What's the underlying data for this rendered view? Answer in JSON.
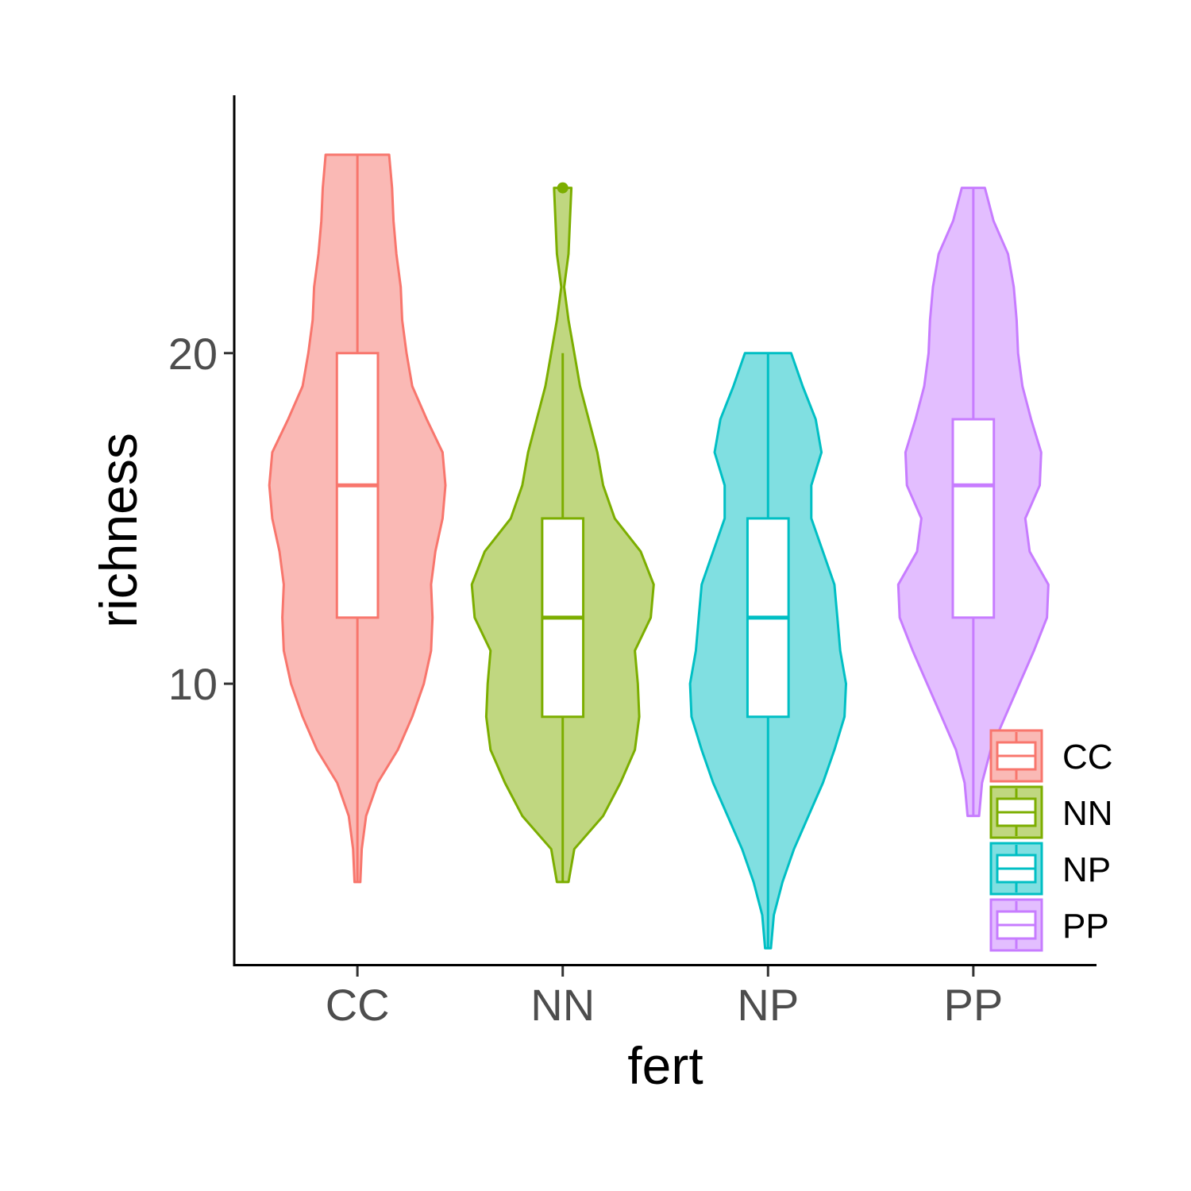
{
  "chart_data": {
    "type": "violin",
    "xlabel": "fert",
    "ylabel": "richness",
    "categories": [
      "CC",
      "NN",
      "NP",
      "PP"
    ],
    "ylim": [
      1.5,
      27.8
    ],
    "yticks": [
      10,
      20
    ],
    "grid": false,
    "legend_position": "bottom-right",
    "series": [
      {
        "name": "CC",
        "color": "#F8766D",
        "fill": "#FAB9B5",
        "box": {
          "min": 4,
          "q1": 12,
          "median": 16,
          "q3": 20,
          "max": 26
        },
        "density": [
          [
            4,
            0.01
          ],
          [
            5,
            0.015
          ],
          [
            6,
            0.03
          ],
          [
            7,
            0.07
          ],
          [
            8,
            0.14
          ],
          [
            9,
            0.19
          ],
          [
            10,
            0.23
          ],
          [
            11,
            0.255
          ],
          [
            12,
            0.26
          ],
          [
            13,
            0.255
          ],
          [
            14,
            0.27
          ],
          [
            15,
            0.295
          ],
          [
            16,
            0.305
          ],
          [
            17,
            0.295
          ],
          [
            18,
            0.24
          ],
          [
            19,
            0.19
          ],
          [
            20,
            0.17
          ],
          [
            21,
            0.155
          ],
          [
            22,
            0.15
          ],
          [
            23,
            0.135
          ],
          [
            24,
            0.125
          ],
          [
            25,
            0.12
          ],
          [
            26,
            0.11
          ]
        ],
        "outliers": []
      },
      {
        "name": "NN",
        "color": "#7CAE00",
        "fill": "#C0D780",
        "box": {
          "min": 4,
          "q1": 9,
          "median": 12,
          "q3": 15,
          "max": 20
        },
        "density": [
          [
            4,
            0.02
          ],
          [
            5,
            0.04
          ],
          [
            6,
            0.14
          ],
          [
            7,
            0.2
          ],
          [
            8,
            0.25
          ],
          [
            9,
            0.265
          ],
          [
            10,
            0.26
          ],
          [
            11,
            0.25
          ],
          [
            12,
            0.305
          ],
          [
            13,
            0.315
          ],
          [
            14,
            0.27
          ],
          [
            15,
            0.18
          ],
          [
            16,
            0.14
          ],
          [
            17,
            0.12
          ],
          [
            18,
            0.09
          ],
          [
            19,
            0.06
          ],
          [
            20,
            0.04
          ],
          [
            21,
            0.02
          ],
          [
            22,
            0.005
          ],
          [
            23,
            0.02
          ],
          [
            24,
            0.025
          ],
          [
            25,
            0.03
          ]
        ],
        "outliers": [
          25
        ]
      },
      {
        "name": "NP",
        "color": "#00BFC4",
        "fill": "#80DFE1",
        "box": {
          "min": 2,
          "q1": 9,
          "median": 12,
          "q3": 15,
          "max": 20
        },
        "density": [
          [
            2,
            0.01
          ],
          [
            3,
            0.02
          ],
          [
            4,
            0.05
          ],
          [
            5,
            0.09
          ],
          [
            6,
            0.14
          ],
          [
            7,
            0.19
          ],
          [
            8,
            0.23
          ],
          [
            9,
            0.265
          ],
          [
            10,
            0.27
          ],
          [
            11,
            0.25
          ],
          [
            12,
            0.24
          ],
          [
            13,
            0.23
          ],
          [
            14,
            0.19
          ],
          [
            15,
            0.15
          ],
          [
            16,
            0.15
          ],
          [
            17,
            0.185
          ],
          [
            18,
            0.165
          ],
          [
            19,
            0.12
          ],
          [
            20,
            0.08
          ]
        ],
        "outliers": []
      },
      {
        "name": "PP",
        "color": "#C77CFF",
        "fill": "#E3BEFF",
        "box": {
          "min": 6,
          "q1": 12,
          "median": 16,
          "q3": 18,
          "max": 25
        },
        "density": [
          [
            6,
            0.02
          ],
          [
            7,
            0.03
          ],
          [
            8,
            0.06
          ],
          [
            9,
            0.11
          ],
          [
            10,
            0.16
          ],
          [
            11,
            0.21
          ],
          [
            12,
            0.255
          ],
          [
            13,
            0.26
          ],
          [
            14,
            0.195
          ],
          [
            15,
            0.18
          ],
          [
            16,
            0.23
          ],
          [
            17,
            0.235
          ],
          [
            18,
            0.2
          ],
          [
            19,
            0.17
          ],
          [
            20,
            0.155
          ],
          [
            21,
            0.15
          ],
          [
            22,
            0.14
          ],
          [
            23,
            0.12
          ],
          [
            24,
            0.07
          ],
          [
            25,
            0.04
          ]
        ],
        "outliers": []
      }
    ]
  }
}
